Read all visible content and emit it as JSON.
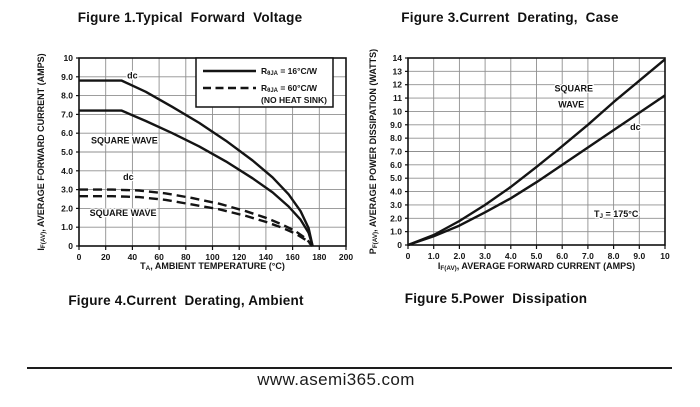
{
  "page": {
    "footer": {
      "url": "www.asemi365.com"
    }
  },
  "figures": {
    "top_left_title": "Figure 1.Typical  Forward  Voltage",
    "top_right_title": "Figure 3.Current  Derating,  Case",
    "bottom_left_caption": "Figure 4.Current  Derating, Ambient",
    "bottom_right_caption": "Figure 5.Power  Dissipation"
  },
  "colors": {
    "ink": "#141414",
    "grid": "#8f8f8f",
    "frame": "#111111"
  },
  "chart_data": [
    {
      "type": "line",
      "name": "current-derating-ambient",
      "xlabel": "T_{A}, AMBIENT TEMPERATURE (°C)",
      "ylabel": "I_{F(AV)}, AVERAGE FORWARD CURRENT (AMPS)",
      "xlim": [
        0,
        200
      ],
      "ylim": [
        0,
        10
      ],
      "grid": true,
      "xticks": [
        0,
        20,
        40,
        60,
        80,
        100,
        120,
        140,
        160,
        180,
        200
      ],
      "xtick_labels": [
        "0",
        "20",
        "40",
        "60",
        "80",
        "100",
        "120",
        "140",
        "160",
        "180",
        "200"
      ],
      "yticks": [
        0,
        1,
        2,
        3,
        4,
        5,
        6,
        7,
        8,
        9,
        10
      ],
      "ytick_labels": [
        "0",
        "1.0",
        "2.0",
        "3.0",
        "4.0",
        "5.0",
        "6.0",
        "7.0",
        "8.0",
        "9.0",
        "10"
      ],
      "legend": {
        "position": "top-right",
        "items": [
          {
            "style": "solid",
            "label": "R_{θJA} = 16°C/W"
          },
          {
            "style": "dashed",
            "label": "R_{θJA} = 60°C/W"
          }
        ],
        "note": "(NO HEAT SINK)"
      },
      "series": [
        {
          "name": "dc RθJA 16C/W",
          "style": "solid",
          "points": [
            [
              0,
              8.8
            ],
            [
              32,
              8.8
            ],
            [
              50,
              8.2
            ],
            [
              70,
              7.4
            ],
            [
              90,
              6.55
            ],
            [
              110,
              5.6
            ],
            [
              130,
              4.55
            ],
            [
              145,
              3.65
            ],
            [
              157,
              2.75
            ],
            [
              166,
              1.85
            ],
            [
              172,
              0.95
            ],
            [
              175,
              0
            ]
          ]
        },
        {
          "name": "square wave RθJA 16C/W",
          "style": "solid",
          "points": [
            [
              0,
              7.2
            ],
            [
              32,
              7.2
            ],
            [
              50,
              6.65
            ],
            [
              70,
              6.0
            ],
            [
              90,
              5.3
            ],
            [
              110,
              4.5
            ],
            [
              130,
              3.6
            ],
            [
              145,
              2.85
            ],
            [
              157,
              2.1
            ],
            [
              166,
              1.4
            ],
            [
              172,
              0.7
            ],
            [
              175,
              0
            ]
          ]
        },
        {
          "name": "dc RθJA 60C/W no heat sink",
          "style": "dashed",
          "points": [
            [
              0,
              3.0
            ],
            [
              25,
              3.0
            ],
            [
              45,
              2.95
            ],
            [
              65,
              2.8
            ],
            [
              85,
              2.55
            ],
            [
              105,
              2.25
            ],
            [
              125,
              1.85
            ],
            [
              140,
              1.5
            ],
            [
              152,
              1.15
            ],
            [
              162,
              0.8
            ],
            [
              170,
              0.4
            ],
            [
              175,
              0
            ]
          ]
        },
        {
          "name": "square wave RθJA 60C/W no heat sink",
          "style": "dashed",
          "points": [
            [
              0,
              2.65
            ],
            [
              25,
              2.65
            ],
            [
              45,
              2.6
            ],
            [
              65,
              2.45
            ],
            [
              85,
              2.2
            ],
            [
              105,
              1.95
            ],
            [
              125,
              1.6
            ],
            [
              140,
              1.28
            ],
            [
              152,
              0.98
            ],
            [
              162,
              0.66
            ],
            [
              170,
              0.32
            ],
            [
              175,
              0
            ]
          ]
        }
      ],
      "annotations": [
        {
          "text": "dc",
          "x": 40,
          "y": 8.9
        },
        {
          "text": "SQUARE WAVE",
          "x": 34,
          "y": 5.45
        },
        {
          "text": "dc",
          "x": 37,
          "y": 3.5
        },
        {
          "text": "SQUARE WAVE",
          "x": 33,
          "y": 1.6
        }
      ]
    },
    {
      "type": "line",
      "name": "power-dissipation",
      "xlabel": "I_{F(AV)}, AVERAGE FORWARD CURRENT (AMPS)",
      "ylabel": "P_{F(AV)}, AVERAGE POWER DISSIPATION (WATTS)",
      "xlim": [
        0,
        10
      ],
      "ylim": [
        0,
        14
      ],
      "grid": true,
      "xticks": [
        0,
        1,
        2,
        3,
        4,
        5,
        6,
        7,
        8,
        9,
        10
      ],
      "xtick_labels": [
        "0",
        "1.0",
        "2.0",
        "3.0",
        "4.0",
        "5.0",
        "6.0",
        "7.0",
        "8.0",
        "9.0",
        "10"
      ],
      "yticks": [
        0,
        1,
        2,
        3,
        4,
        5,
        6,
        7,
        8,
        9,
        10,
        11,
        12,
        13,
        14
      ],
      "ytick_labels": [
        "0",
        "1.0",
        "2.0",
        "3.0",
        "4.0",
        "5.0",
        "6.0",
        "7.0",
        "8.0",
        "9.0",
        "10",
        "11",
        "12",
        "13",
        "14"
      ],
      "series": [
        {
          "name": "square wave",
          "style": "solid",
          "points": [
            [
              0,
              0
            ],
            [
              1,
              0.75
            ],
            [
              2,
              1.8
            ],
            [
              3,
              3.0
            ],
            [
              4,
              4.35
            ],
            [
              5,
              5.85
            ],
            [
              6,
              7.4
            ],
            [
              7,
              9.0
            ],
            [
              8,
              10.7
            ],
            [
              9,
              12.3
            ],
            [
              10,
              13.9
            ]
          ]
        },
        {
          "name": "dc",
          "style": "solid",
          "points": [
            [
              0,
              0
            ],
            [
              1,
              0.65
            ],
            [
              2,
              1.45
            ],
            [
              3,
              2.45
            ],
            [
              4,
              3.5
            ],
            [
              5,
              4.7
            ],
            [
              6,
              6.0
            ],
            [
              7,
              7.3
            ],
            [
              8,
              8.6
            ],
            [
              9,
              9.9
            ],
            [
              10,
              11.2
            ]
          ]
        }
      ],
      "annotations": [
        {
          "text": "SQUARE",
          "x": 6.45,
          "y": 11.5
        },
        {
          "text": "WAVE",
          "x": 6.35,
          "y": 10.3
        },
        {
          "text": "dc",
          "x": 8.85,
          "y": 8.6
        },
        {
          "text": "T_{J} = 175°C",
          "x": 8.1,
          "y": 2.1
        }
      ]
    }
  ]
}
